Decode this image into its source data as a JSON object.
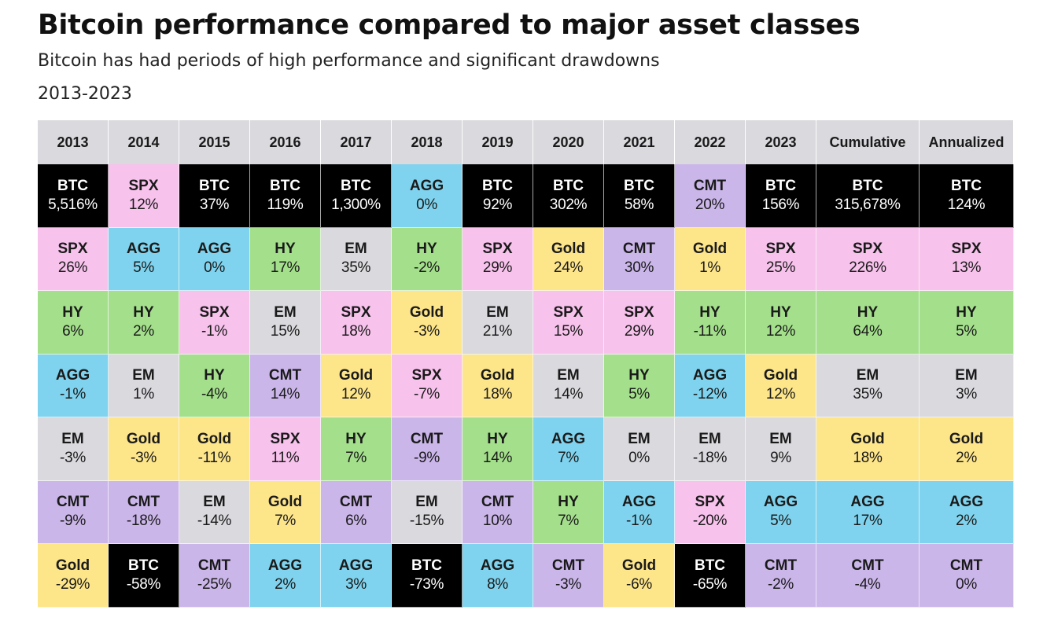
{
  "title": "Bitcoin performance compared to major asset classes",
  "subtitle": "Bitcoin has had periods of high performance and significant drawdowns",
  "period": "2013-2023",
  "colors": {
    "BTC": "#000000",
    "SPX": "#f7c2ec",
    "AGG": "#7fd3ee",
    "HY": "#a4e08c",
    "EM": "#d9d9de",
    "CMT": "#cbb6ea",
    "Gold": "#fde58a"
  },
  "text_colors": {
    "BTC": "#ffffff",
    "default": "#1a1a1a"
  },
  "chart_data": {
    "type": "table",
    "columns": [
      "2013",
      "2014",
      "2015",
      "2016",
      "2017",
      "2018",
      "2019",
      "2020",
      "2021",
      "2022",
      "2023",
      "Cumulative",
      "Annualized"
    ],
    "rankings": [
      [
        {
          "asset": "BTC",
          "value": "5,516%"
        },
        {
          "asset": "SPX",
          "value": "26%"
        },
        {
          "asset": "HY",
          "value": "6%"
        },
        {
          "asset": "AGG",
          "value": "-1%"
        },
        {
          "asset": "EM",
          "value": "-3%"
        },
        {
          "asset": "CMT",
          "value": "-9%"
        },
        {
          "asset": "Gold",
          "value": "-29%"
        }
      ],
      [
        {
          "asset": "SPX",
          "value": "12%"
        },
        {
          "asset": "AGG",
          "value": "5%"
        },
        {
          "asset": "HY",
          "value": "2%"
        },
        {
          "asset": "EM",
          "value": "1%"
        },
        {
          "asset": "Gold",
          "value": "-3%"
        },
        {
          "asset": "CMT",
          "value": "-18%"
        },
        {
          "asset": "BTC",
          "value": "-58%"
        }
      ],
      [
        {
          "asset": "BTC",
          "value": "37%"
        },
        {
          "asset": "AGG",
          "value": "0%"
        },
        {
          "asset": "SPX",
          "value": "-1%"
        },
        {
          "asset": "HY",
          "value": "-4%"
        },
        {
          "asset": "Gold",
          "value": "-11%"
        },
        {
          "asset": "EM",
          "value": "-14%"
        },
        {
          "asset": "CMT",
          "value": "-25%"
        }
      ],
      [
        {
          "asset": "BTC",
          "value": "119%"
        },
        {
          "asset": "HY",
          "value": "17%"
        },
        {
          "asset": "EM",
          "value": "15%"
        },
        {
          "asset": "CMT",
          "value": "14%"
        },
        {
          "asset": "SPX",
          "value": "11%"
        },
        {
          "asset": "Gold",
          "value": "7%"
        },
        {
          "asset": "AGG",
          "value": "2%"
        }
      ],
      [
        {
          "asset": "BTC",
          "value": "1,300%"
        },
        {
          "asset": "EM",
          "value": "35%"
        },
        {
          "asset": "SPX",
          "value": "18%"
        },
        {
          "asset": "Gold",
          "value": "12%"
        },
        {
          "asset": "HY",
          "value": "7%"
        },
        {
          "asset": "CMT",
          "value": "6%"
        },
        {
          "asset": "AGG",
          "value": "3%"
        }
      ],
      [
        {
          "asset": "AGG",
          "value": "0%"
        },
        {
          "asset": "HY",
          "value": "-2%"
        },
        {
          "asset": "Gold",
          "value": "-3%"
        },
        {
          "asset": "SPX",
          "value": "-7%"
        },
        {
          "asset": "CMT",
          "value": "-9%"
        },
        {
          "asset": "EM",
          "value": "-15%"
        },
        {
          "asset": "BTC",
          "value": "-73%"
        }
      ],
      [
        {
          "asset": "BTC",
          "value": "92%"
        },
        {
          "asset": "SPX",
          "value": "29%"
        },
        {
          "asset": "EM",
          "value": "21%"
        },
        {
          "asset": "Gold",
          "value": "18%"
        },
        {
          "asset": "HY",
          "value": "14%"
        },
        {
          "asset": "CMT",
          "value": "10%"
        },
        {
          "asset": "AGG",
          "value": "8%"
        }
      ],
      [
        {
          "asset": "BTC",
          "value": "302%"
        },
        {
          "asset": "Gold",
          "value": "24%"
        },
        {
          "asset": "SPX",
          "value": "15%"
        },
        {
          "asset": "EM",
          "value": "14%"
        },
        {
          "asset": "AGG",
          "value": "7%"
        },
        {
          "asset": "HY",
          "value": "7%"
        },
        {
          "asset": "CMT",
          "value": "-3%"
        }
      ],
      [
        {
          "asset": "BTC",
          "value": "58%"
        },
        {
          "asset": "CMT",
          "value": "30%"
        },
        {
          "asset": "SPX",
          "value": "29%"
        },
        {
          "asset": "HY",
          "value": "5%"
        },
        {
          "asset": "EM",
          "value": "0%"
        },
        {
          "asset": "AGG",
          "value": "-1%"
        },
        {
          "asset": "Gold",
          "value": "-6%"
        }
      ],
      [
        {
          "asset": "CMT",
          "value": "20%"
        },
        {
          "asset": "Gold",
          "value": "1%"
        },
        {
          "asset": "HY",
          "value": "-11%"
        },
        {
          "asset": "AGG",
          "value": "-12%"
        },
        {
          "asset": "EM",
          "value": "-18%"
        },
        {
          "asset": "SPX",
          "value": "-20%"
        },
        {
          "asset": "BTC",
          "value": "-65%"
        }
      ],
      [
        {
          "asset": "BTC",
          "value": "156%"
        },
        {
          "asset": "SPX",
          "value": "25%"
        },
        {
          "asset": "HY",
          "value": "12%"
        },
        {
          "asset": "Gold",
          "value": "12%"
        },
        {
          "asset": "EM",
          "value": "9%"
        },
        {
          "asset": "AGG",
          "value": "5%"
        },
        {
          "asset": "CMT",
          "value": "-2%"
        }
      ],
      [
        {
          "asset": "BTC",
          "value": "315,678%"
        },
        {
          "asset": "SPX",
          "value": "226%"
        },
        {
          "asset": "HY",
          "value": "64%"
        },
        {
          "asset": "EM",
          "value": "35%"
        },
        {
          "asset": "Gold",
          "value": "18%"
        },
        {
          "asset": "AGG",
          "value": "17%"
        },
        {
          "asset": "CMT",
          "value": "-4%"
        }
      ],
      [
        {
          "asset": "BTC",
          "value": "124%"
        },
        {
          "asset": "SPX",
          "value": "13%"
        },
        {
          "asset": "HY",
          "value": "5%"
        },
        {
          "asset": "EM",
          "value": "3%"
        },
        {
          "asset": "Gold",
          "value": "2%"
        },
        {
          "asset": "AGG",
          "value": "2%"
        },
        {
          "asset": "CMT",
          "value": "0%"
        }
      ]
    ]
  }
}
